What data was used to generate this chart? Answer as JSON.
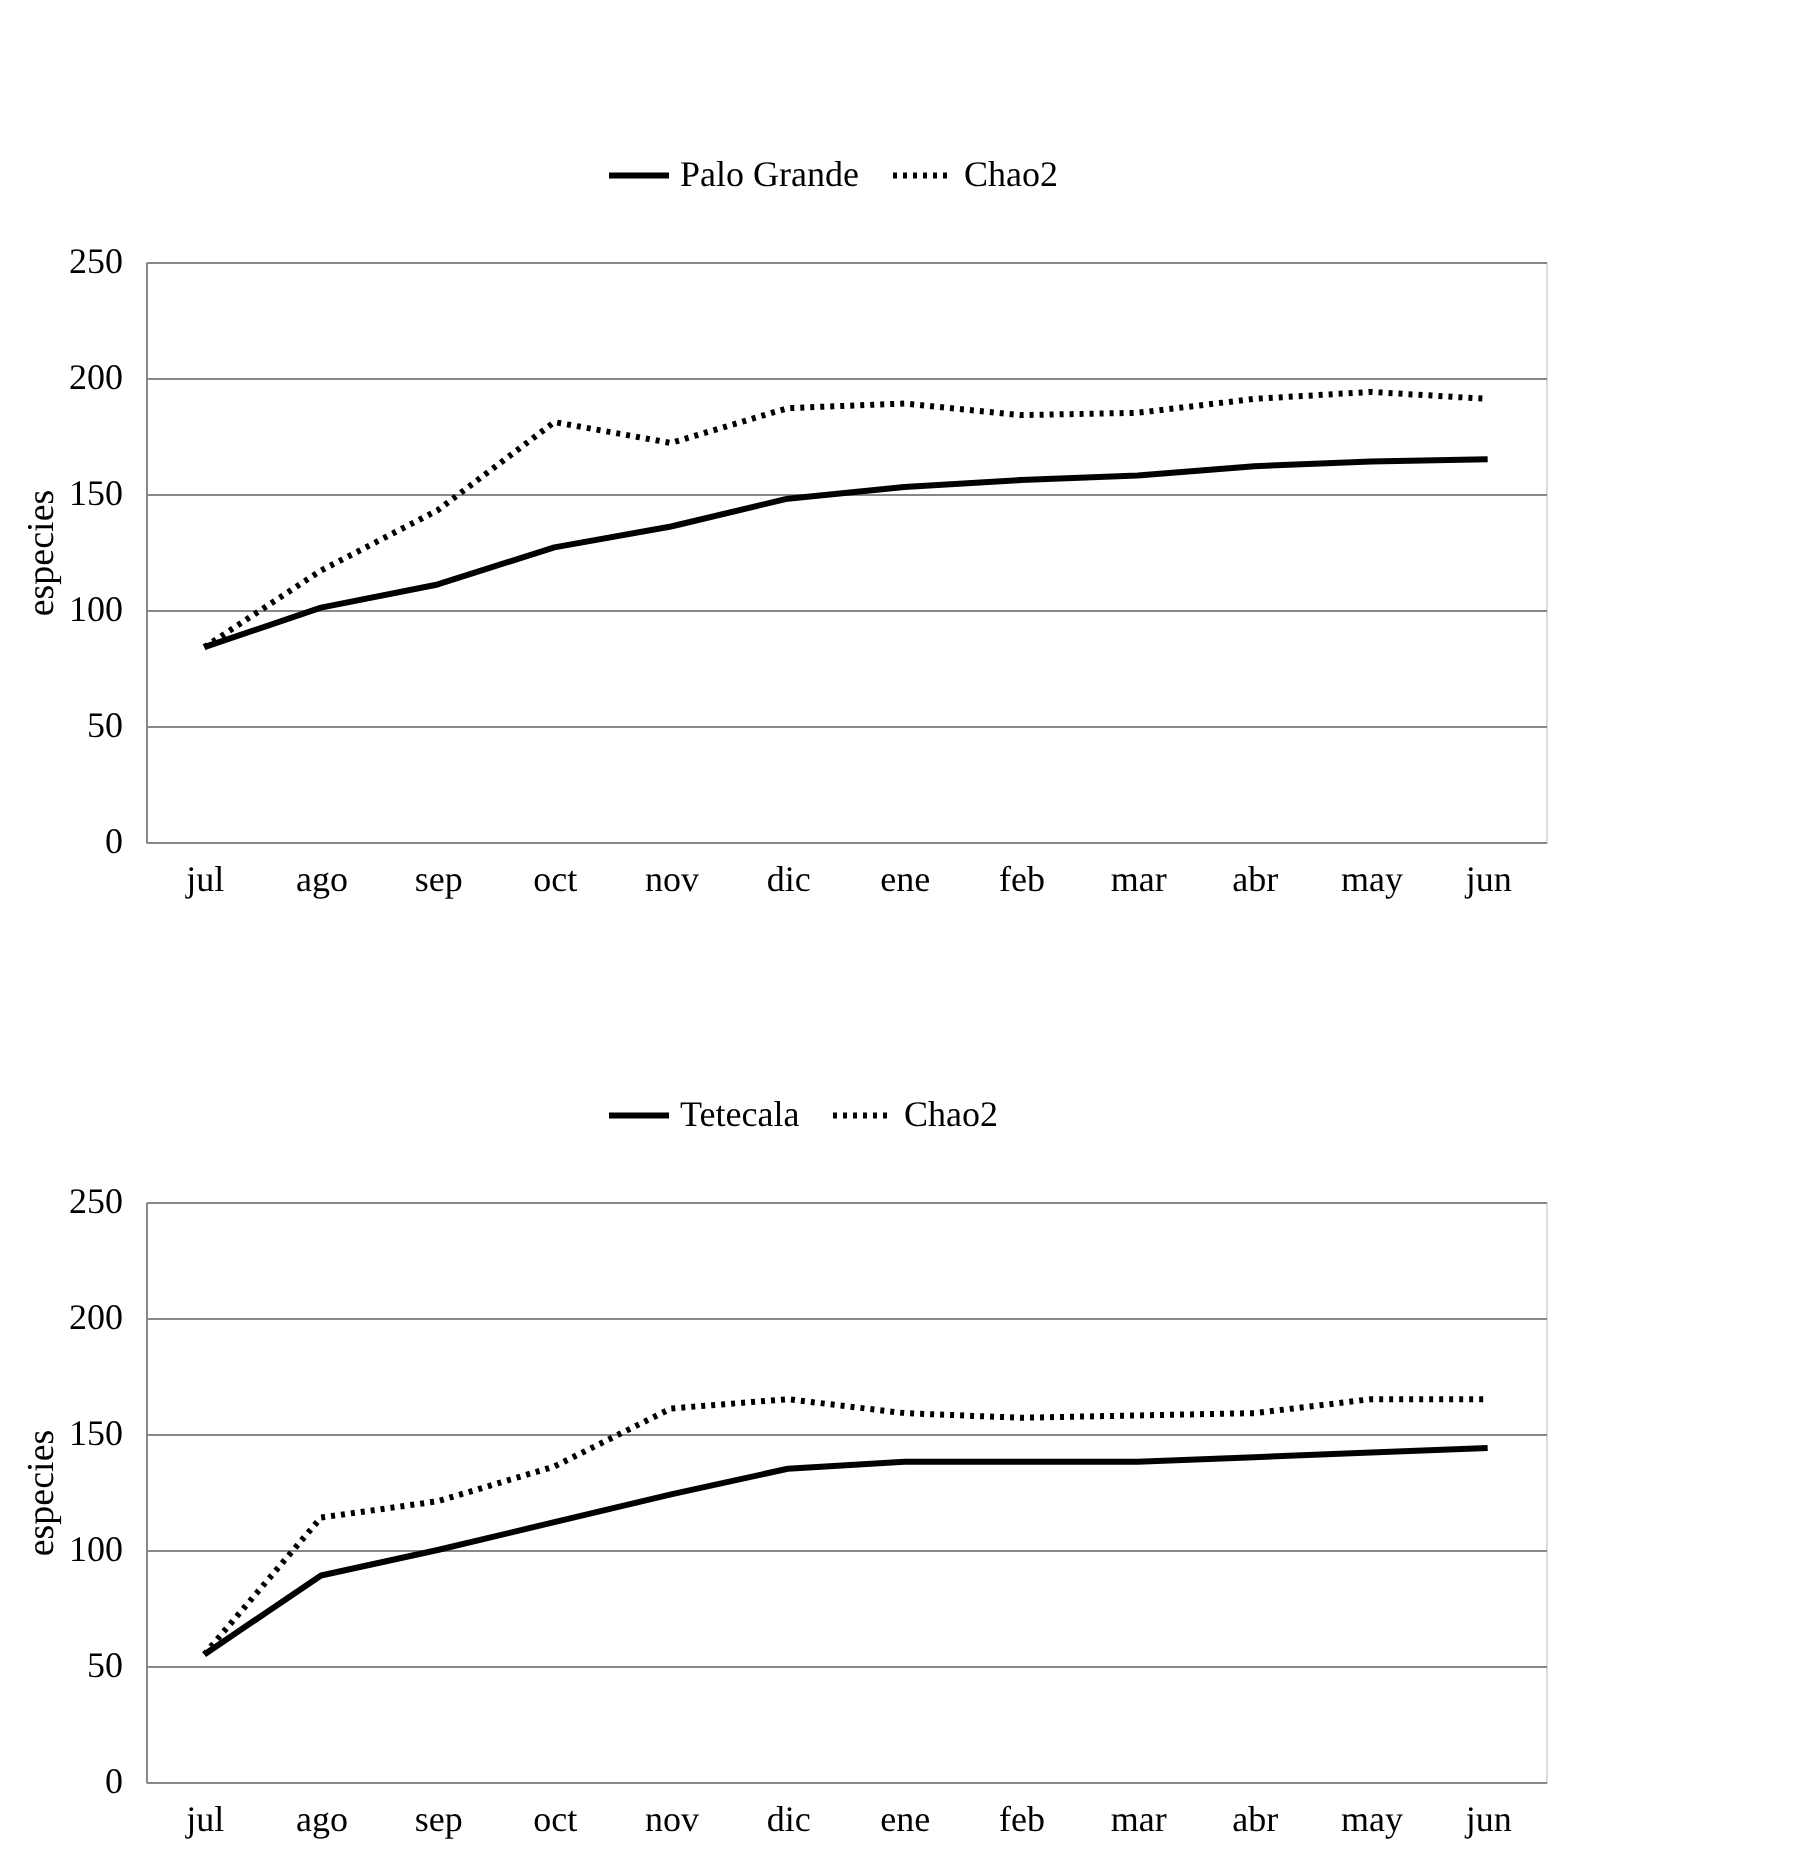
{
  "chart_data": [
    {
      "type": "line",
      "ylabel": "especies",
      "categories": [
        "jul",
        "ago",
        "sep",
        "oct",
        "nov",
        "dic",
        "ene",
        "feb",
        "mar",
        "abr",
        "may",
        "jun"
      ],
      "ylim": [
        0,
        250
      ],
      "yticks": [
        0,
        50,
        100,
        150,
        200,
        250
      ],
      "grid": "y",
      "legend": "top",
      "series": [
        {
          "name": "Palo Grande",
          "color": "#000000",
          "line_style": "solid",
          "values": [
            84,
            101,
            111,
            127,
            136,
            148,
            153,
            156,
            158,
            162,
            164,
            165
          ]
        },
        {
          "name": "Chao2",
          "color": "#000000",
          "line_style": "dotted",
          "values": [
            84,
            117,
            143,
            181,
            172,
            187,
            189,
            184,
            185,
            191,
            194,
            191
          ]
        }
      ]
    },
    {
      "type": "line",
      "ylabel": "especies",
      "categories": [
        "jul",
        "ago",
        "sep",
        "oct",
        "nov",
        "dic",
        "ene",
        "feb",
        "mar",
        "abr",
        "may",
        "jun"
      ],
      "ylim": [
        0,
        250
      ],
      "yticks": [
        0,
        50,
        100,
        150,
        200,
        250
      ],
      "grid": "y",
      "legend": "top",
      "series": [
        {
          "name": "Tetecala",
          "color": "#000000",
          "line_style": "solid",
          "values": [
            55,
            89,
            100,
            112,
            124,
            135,
            138,
            138,
            138,
            140,
            142,
            144
          ]
        },
        {
          "name": "Chao2",
          "color": "#000000",
          "line_style": "dotted",
          "values": [
            55,
            114,
            121,
            136,
            161,
            165,
            159,
            157,
            158,
            159,
            165,
            165
          ]
        }
      ]
    }
  ]
}
